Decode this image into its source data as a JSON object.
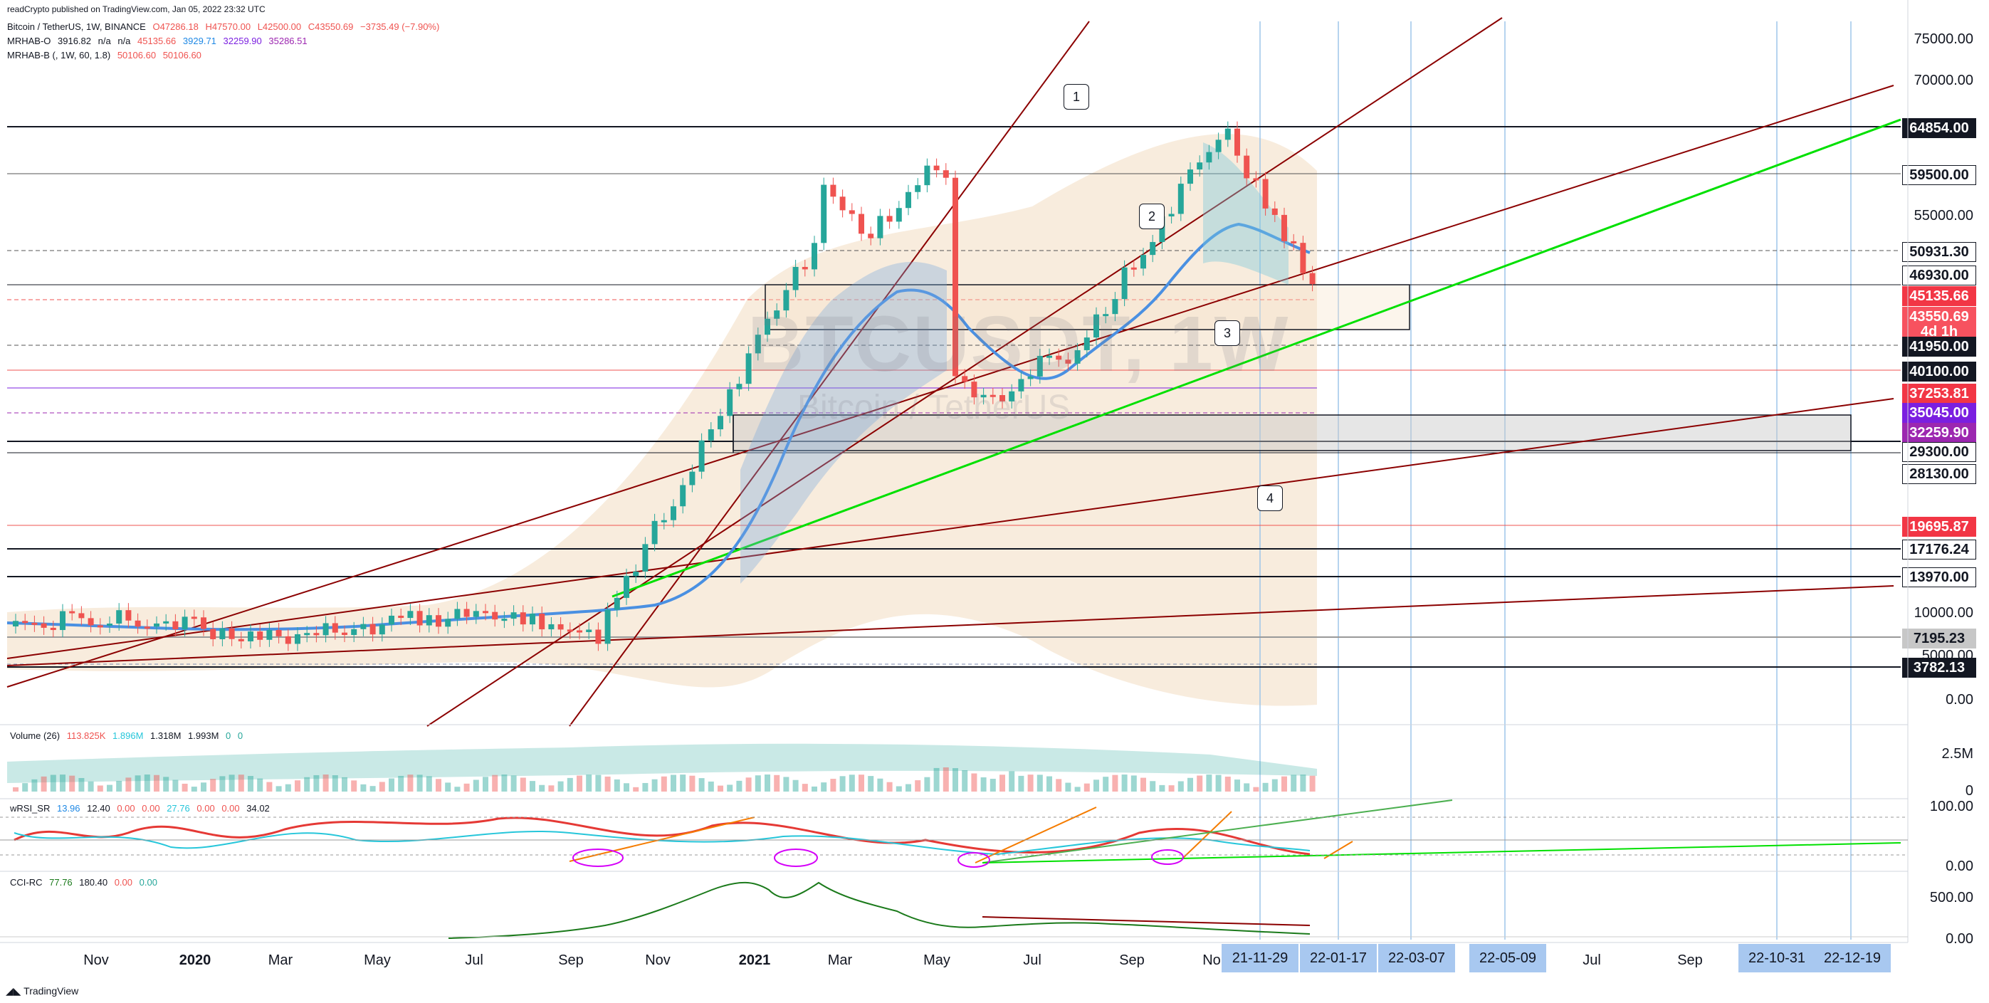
{
  "header": {
    "published": "readCrypto published on TradingView.com, Jan 05, 2022 23:32 UTC",
    "symbol": "Bitcoin / TetherUS, 1W, BINANCE",
    "ohlc": {
      "o": "O47286.18",
      "h": "H47570.00",
      "l": "L42500.00",
      "c": "C43550.69",
      "chg": "−3735.49 (−7.90%)"
    },
    "mrhab_o": {
      "label": "MRHAB-O",
      "v1": "3916.82",
      "v2": "n/a",
      "v3": "n/a",
      "v4": "45135.66",
      "v5": "3929.71",
      "v6": "32259.90",
      "v7": "35286.51"
    },
    "mrhab_b": {
      "label": "MRHAB-B (, 1W, 60, 1.8)",
      "v1": "50106.60",
      "v2": "50106.60"
    }
  },
  "watermark": {
    "ticker": "BTCUSDT, 1W",
    "name": "Bitcoin / TetherUS"
  },
  "price_axis": [
    "75000.00",
    "70000.00",
    "55000.00",
    "10000.00",
    "5000.00",
    "0.00"
  ],
  "price_tags": [
    {
      "text": "64854.00",
      "bg": "#131722",
      "fg": "#ffffff"
    },
    {
      "text": "59500.00",
      "bg": "#ffffff",
      "fg": "#131722"
    },
    {
      "text": "50931.30",
      "bg": "#ffffff",
      "fg": "#131722"
    },
    {
      "text": "46930.00",
      "bg": "#ffffff",
      "fg": "#131722"
    },
    {
      "text": "45135.66",
      "bg": "#f23645",
      "fg": "#ffffff"
    },
    {
      "text": "43550.69",
      "bg": "#f7525f",
      "fg": "#ffffff"
    },
    {
      "text": "4d 1h",
      "bg": "#f7525f",
      "fg": "#ffffff"
    },
    {
      "text": "41950.00",
      "bg": "#131722",
      "fg": "#ffffff"
    },
    {
      "text": "40100.00",
      "bg": "#131722",
      "fg": "#ffffff"
    },
    {
      "text": "37253.81",
      "bg": "#f23645",
      "fg": "#ffffff"
    },
    {
      "text": "35045.00",
      "bg": "#7b1fe0",
      "fg": "#ffffff"
    },
    {
      "text": "32259.90",
      "bg": "#9c27b0",
      "fg": "#ffffff"
    },
    {
      "text": "29300.00",
      "bg": "#ffffff",
      "fg": "#131722"
    },
    {
      "text": "28130.00",
      "bg": "#ffffff",
      "fg": "#131722"
    },
    {
      "text": "19695.87",
      "bg": "#f23645",
      "fg": "#ffffff"
    },
    {
      "text": "17176.24",
      "bg": "#ffffff",
      "fg": "#131722"
    },
    {
      "text": "13970.00",
      "bg": "#ffffff",
      "fg": "#131722"
    },
    {
      "text": "7195.23",
      "bg": "#c7c7c7",
      "fg": "#131722"
    },
    {
      "text": "3782.13",
      "bg": "#131722",
      "fg": "#ffffff"
    }
  ],
  "indicators": {
    "volume": {
      "label": "Volume (26)",
      "v1": "113.825K",
      "v2": "1.896M",
      "v3": "1.318M",
      "v4": "1.993M",
      "v5": "0",
      "v6": "0",
      "axis": [
        "2.5M",
        "0"
      ]
    },
    "wrsi": {
      "label": "wRSI_SR",
      "v1": "13.96",
      "v2": "12.40",
      "v3": "0.00",
      "v4": "0.00",
      "v5": "27.76",
      "v6": "0.00",
      "v7": "0.00",
      "v8": "34.02",
      "axis": [
        "100.00",
        "0.00"
      ]
    },
    "cci": {
      "label": "CCI-RC",
      "v1": "77.76",
      "v2": "180.40",
      "v3": "0.00",
      "v4": "0.00",
      "axis": [
        "500.00",
        "0.00"
      ]
    }
  },
  "callouts": [
    "1",
    "2",
    "3",
    "4"
  ],
  "time_axis": [
    "Nov",
    "2020",
    "Mar",
    "May",
    "Jul",
    "Sep",
    "Nov",
    "2021",
    "Mar",
    "May",
    "Jul",
    "Sep",
    "No",
    "Jul",
    "Sep"
  ],
  "date_tags": [
    "21-11-29",
    "22-01-17",
    "22-03-07",
    "22-05-09",
    "22-10-31",
    "22-12-19"
  ],
  "footer": {
    "brand": "TradingView"
  },
  "colors": {
    "up": "#26a69a",
    "down": "#ef5350",
    "band": "#f5e1c8",
    "trend": "#8b0000",
    "green_line": "#00e000"
  }
}
